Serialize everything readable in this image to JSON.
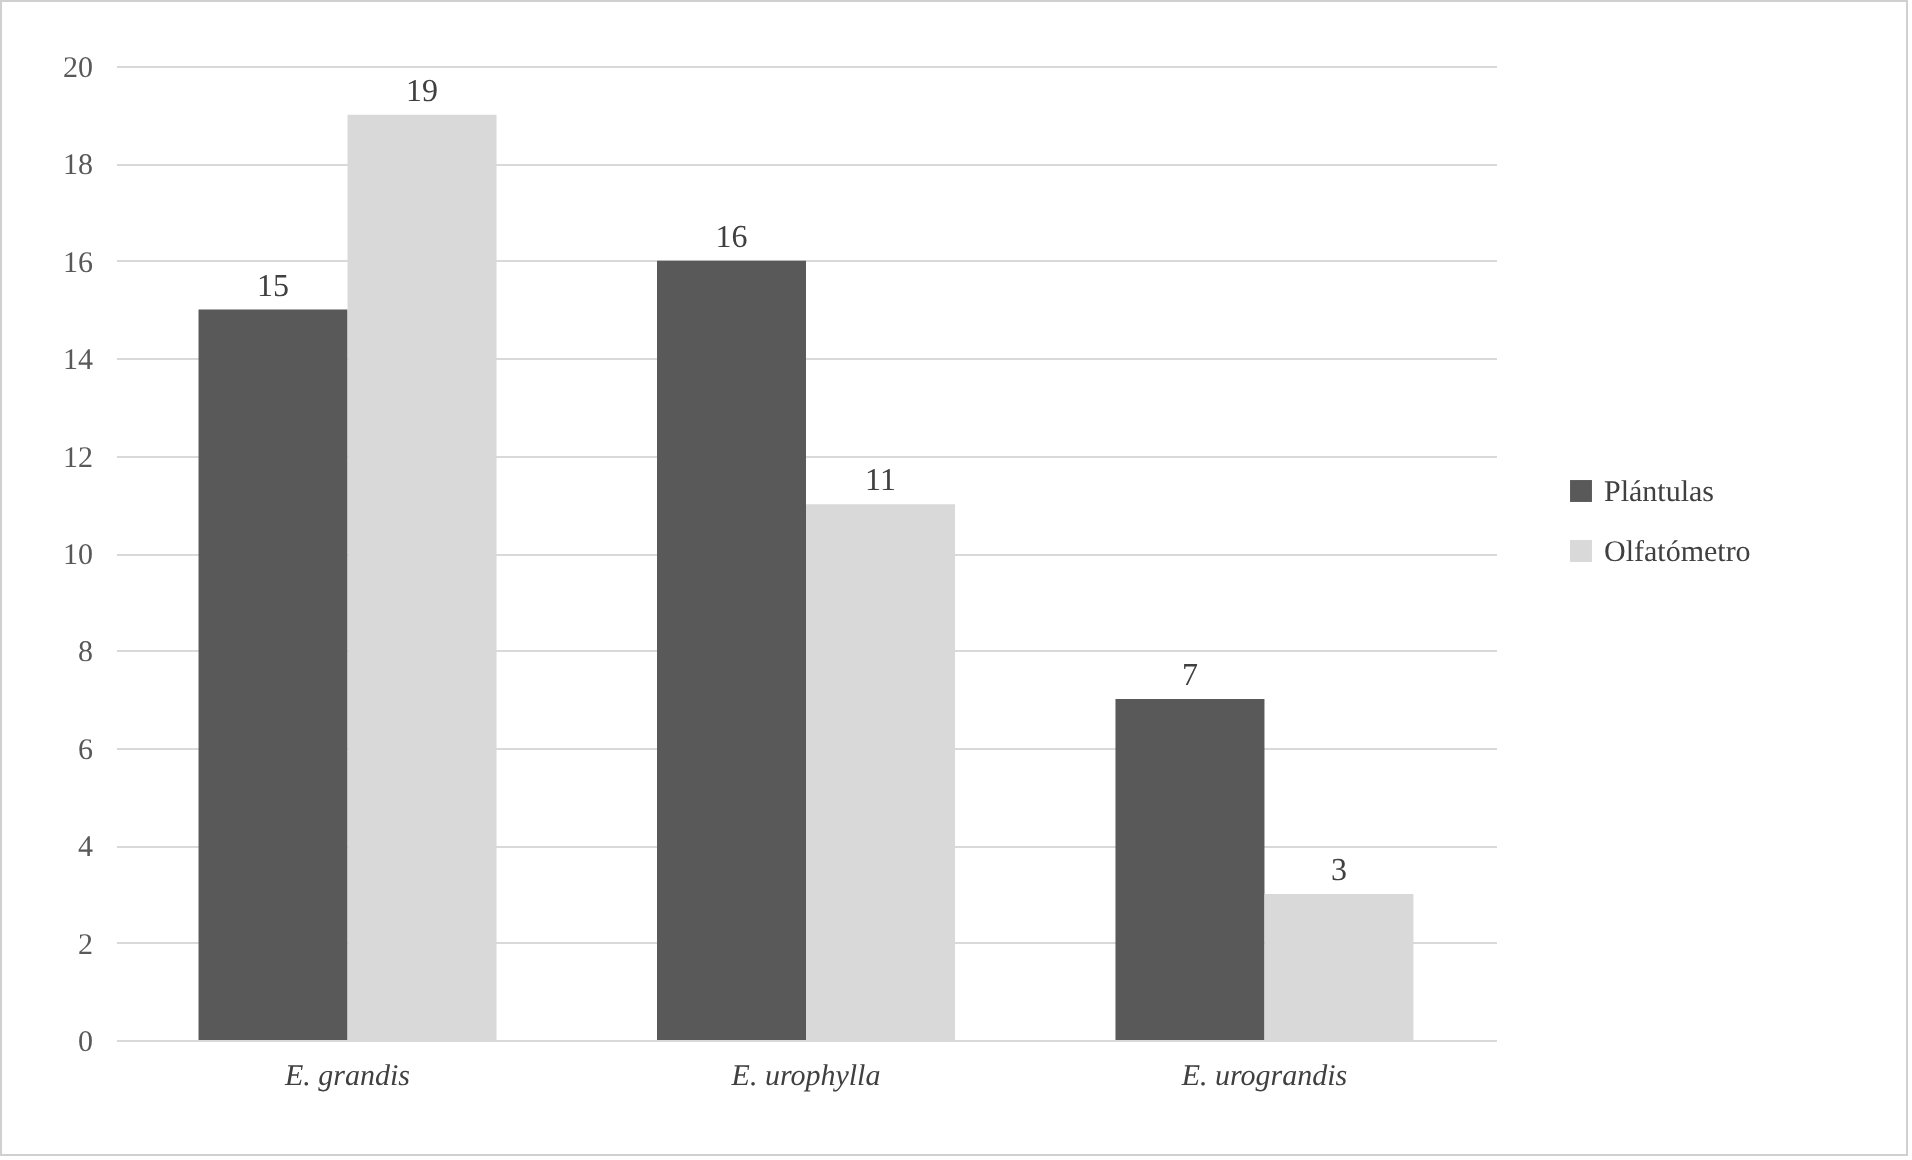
{
  "chart_data": {
    "type": "bar",
    "categories": [
      "E. grandis",
      "E. urophylla",
      "E. urograndis"
    ],
    "series": [
      {
        "name": "Plántulas",
        "color": "#595959",
        "values": [
          15,
          16,
          7
        ]
      },
      {
        "name": "Olfatómetro",
        "color": "#d9d9d9",
        "values": [
          19,
          11,
          3
        ]
      }
    ],
    "ylim": [
      0,
      20
    ],
    "yticks": [
      0,
      2,
      4,
      6,
      8,
      10,
      12,
      14,
      16,
      18,
      20
    ],
    "grid": "y",
    "legend": "right",
    "data_labels": true
  }
}
